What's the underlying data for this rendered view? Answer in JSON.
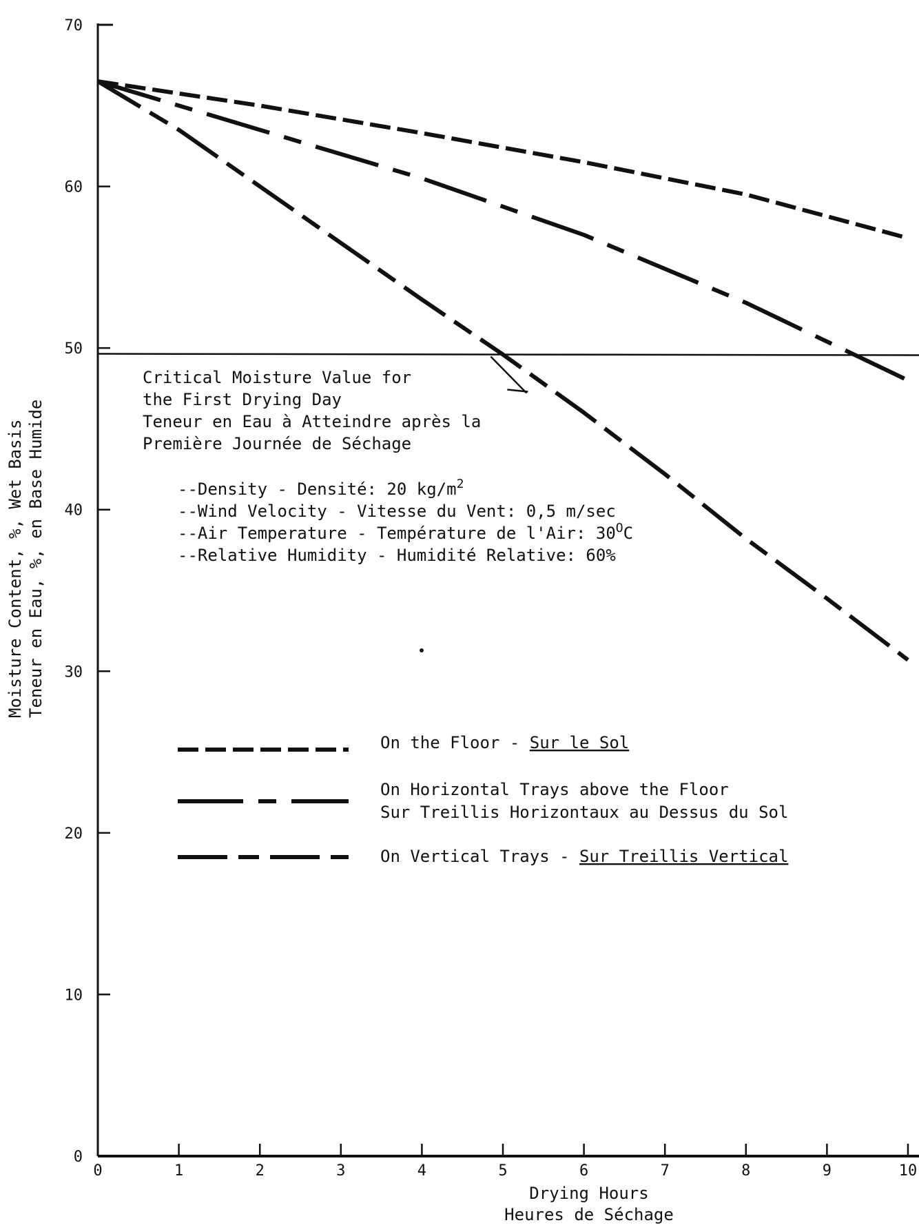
{
  "chart_data": {
    "type": "line",
    "x_axis": {
      "range": [
        0,
        10
      ],
      "ticks": [
        0,
        1,
        2,
        3,
        4,
        5,
        6,
        7,
        8,
        9,
        10
      ],
      "tick_labels": [
        "0",
        "1",
        "2",
        "3",
        "4",
        "5",
        "6",
        "7",
        "8",
        "9",
        "10"
      ],
      "label_lines": [
        "Drying Hours",
        "Heures de Séchage"
      ]
    },
    "y_axis": {
      "range": [
        0,
        70
      ],
      "ticks": [
        0,
        10,
        20,
        30,
        40,
        50,
        60,
        70
      ],
      "tick_labels": [
        "0",
        "10",
        "20",
        "30",
        "40",
        "50",
        "60",
        "70"
      ],
      "label_lines": [
        "Moisture Content, %, Wet Basis",
        "Teneur en Eau, %, en Base Humide"
      ]
    },
    "grid": false,
    "series": [
      {
        "name": "On the Floor - Sur le Sol",
        "legend_text": "On the Floor - ",
        "legend_text_underlined": "Sur le Sol",
        "line_style": "dashed",
        "x": [
          0,
          2,
          4,
          6,
          8,
          10
        ],
        "y": [
          66.5,
          65,
          63.3,
          61.5,
          59.5,
          56.8
        ]
      },
      {
        "name": "On Horizontal Trays above the Floor / Sur Treillis Horizontaux au Dessus du Sol",
        "legend_line1": "On Horizontal Trays above the Floor",
        "legend_line2": "Sur Treillis Horizontaux au Dessus du Sol",
        "line_style": "long-dash-dot",
        "x": [
          0,
          2,
          4,
          6,
          8,
          10
        ],
        "y": [
          66.5,
          63.5,
          60.5,
          57,
          52.8,
          48
        ]
      },
      {
        "name": "On Vertical Trays - Sur Treillis Vertical",
        "legend_text": "On Vertical Trays - ",
        "legend_text_underlined": "Sur Treillis Vertical",
        "line_style": "long-short-dash",
        "x": [
          0,
          1,
          2,
          3,
          4,
          5,
          6,
          7,
          8,
          9,
          10
        ],
        "y": [
          66.5,
          63.5,
          60,
          56.5,
          53,
          49.6,
          46,
          42.2,
          38.2,
          34.5,
          30.7
        ]
      }
    ],
    "reference_line": {
      "y": 49.6
    },
    "annotation": {
      "lines": [
        "Critical Moisture Value for",
        "the First Drying Day",
        "Teneur en Eau à Atteindre après la",
        "Première Journée de Séchage"
      ]
    },
    "conditions": [
      {
        "text": "--Density - Densité: 20 kg/m",
        "sup": "2"
      },
      {
        "text": "--Wind Velocity - Vitesse du Vent: 0,5 m/sec"
      },
      {
        "text": "--Air Temperature - Température de l'Air: 30",
        "sup": "O",
        "tail": "C"
      },
      {
        "text": "--Relative Humidity - Humidité Relative: 60%"
      }
    ]
  }
}
